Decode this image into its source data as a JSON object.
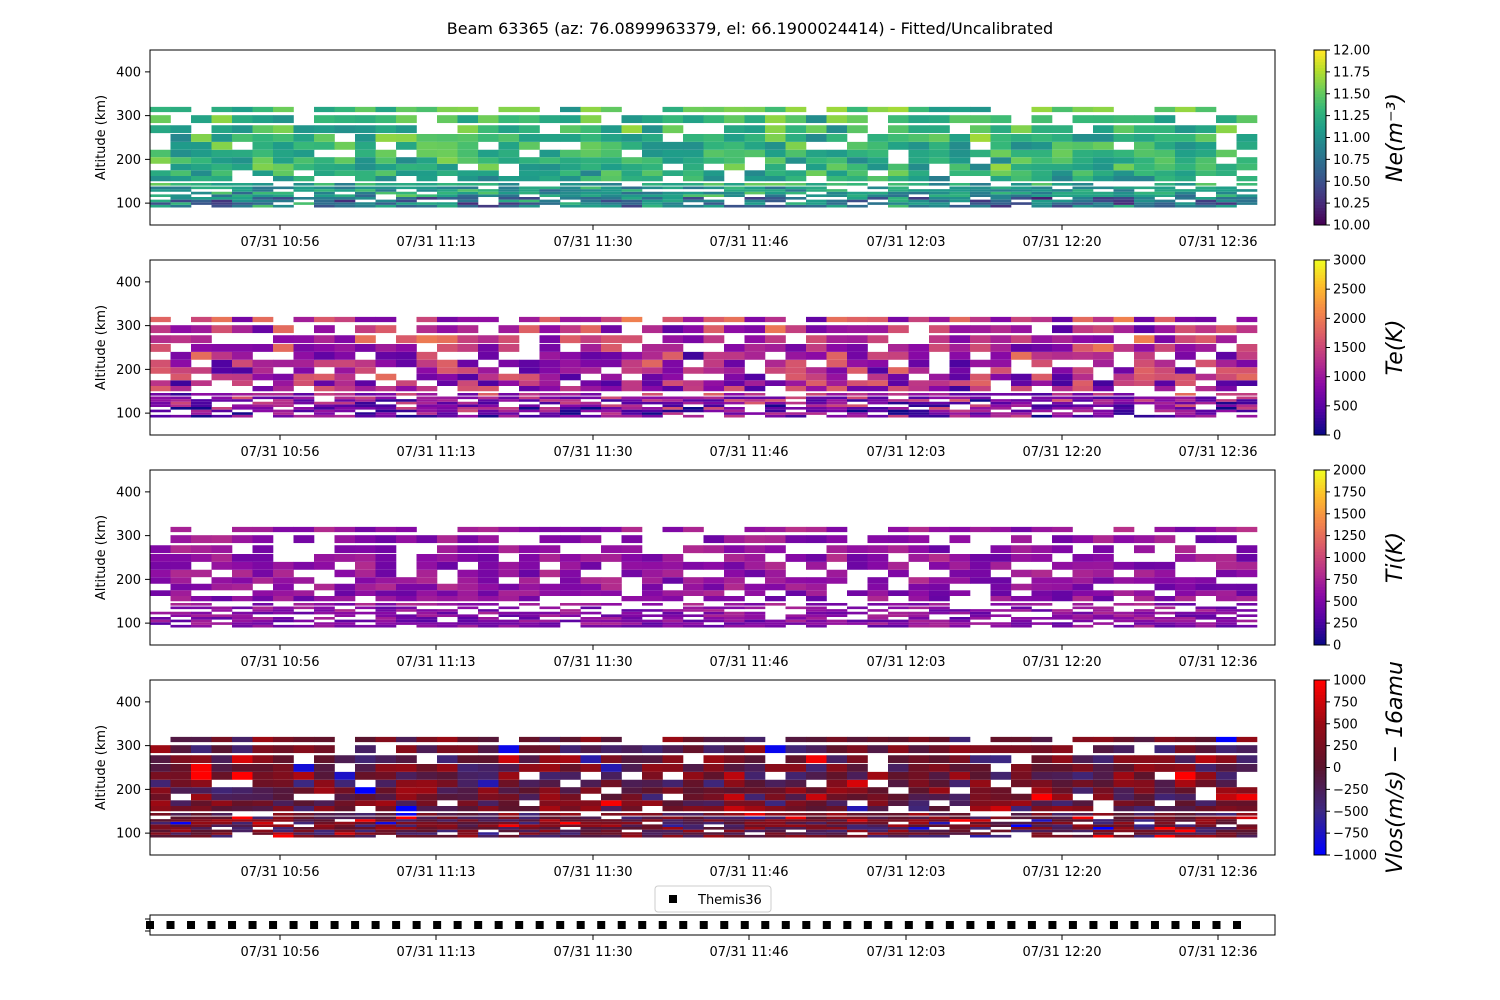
{
  "chart_data": {
    "type": "heatmap",
    "title": "Beam 63365 (az: 76.0899963379, el: 66.1900024414) - Fitted/Uncalibrated",
    "x_tick_labels": [
      "07/31 10:56",
      "07/31 11:13",
      "07/31 11:30",
      "07/31 11:46",
      "07/31 12:03",
      "07/31 12:20",
      "07/31 12:36"
    ],
    "x_range": [
      "07/31 10:42",
      "07/31 12:40"
    ],
    "time_bins": 54,
    "altitude_bins_km": [
      90,
      96,
      102,
      108,
      114,
      120,
      126,
      132,
      140,
      150,
      162,
      175,
      190,
      205,
      222,
      240,
      260,
      283,
      308
    ],
    "panels": [
      {
        "ylabel": "Altitude (km)",
        "ylim": [
          50,
          450
        ],
        "y_ticks": [
          "100",
          "200",
          "300",
          "400"
        ],
        "colorbar_label": "Ne(m⁻³)",
        "colorbar_range": [
          10.0,
          12.0
        ],
        "colorbar_ticks": [
          "10.00",
          "10.25",
          "10.50",
          "10.75",
          "11.00",
          "11.25",
          "11.50",
          "11.75",
          "12.00"
        ],
        "colormap": "viridis",
        "fill_rate": 0.82,
        "profile_low": [
          10.4,
          10.9,
          11.1,
          11.15,
          11.2,
          11.25
        ],
        "profile_high": [
          11.2,
          11.25,
          11.3,
          11.4,
          11.5,
          11.6
        ],
        "variability": 0.3
      },
      {
        "ylabel": "Altitude (km)",
        "ylim": [
          50,
          450
        ],
        "y_ticks": [
          "100",
          "200",
          "300",
          "400"
        ],
        "colorbar_label": "Te(K)",
        "colorbar_range": [
          0,
          3000
        ],
        "colorbar_ticks": [
          "0",
          "500",
          "1000",
          "1500",
          "2000",
          "2500",
          "3000"
        ],
        "colormap": "plasma",
        "fill_rate": 0.82,
        "profile_low": [
          500,
          700,
          900,
          1000,
          1000,
          1100
        ],
        "profile_high": [
          1000,
          1100,
          1200,
          1300,
          1400,
          1500
        ],
        "variability": 700
      },
      {
        "ylabel": "Altitude (km)",
        "ylim": [
          50,
          450
        ],
        "y_ticks": [
          "100",
          "200",
          "300",
          "400"
        ],
        "colorbar_label": "Ti(K)",
        "colorbar_range": [
          0,
          2000
        ],
        "colorbar_ticks": [
          "0",
          "250",
          "500",
          "750",
          "1000",
          "1250",
          "1500",
          "1750",
          "2000"
        ],
        "colormap": "plasma",
        "fill_rate": 0.74,
        "profile_low": [
          520,
          560,
          580,
          600,
          600,
          620
        ],
        "profile_high": [
          560,
          580,
          600,
          620,
          640,
          660
        ],
        "variability": 220
      },
      {
        "ylabel": "Altitude (km)",
        "ylim": [
          50,
          450
        ],
        "y_ticks": [
          "100",
          "200",
          "300",
          "400"
        ],
        "colorbar_label": "Vlos(m/s) − 16amu",
        "colorbar_range": [
          -1000,
          1000
        ],
        "colorbar_ticks": [
          "1000",
          "750",
          "500",
          "250",
          "0",
          "−250",
          "−500",
          "−750",
          "−1000"
        ],
        "colormap": "bwr-dark",
        "fill_rate": 0.9,
        "profile_low": [
          100,
          100,
          100,
          100,
          100,
          100
        ],
        "profile_high": [
          100,
          100,
          100,
          100,
          100,
          100
        ],
        "variability": 500
      }
    ],
    "bottom_panel": {
      "legend_label": "Themis36",
      "marker": "square",
      "marker_color": "#000000",
      "marker_count": 54
    }
  }
}
